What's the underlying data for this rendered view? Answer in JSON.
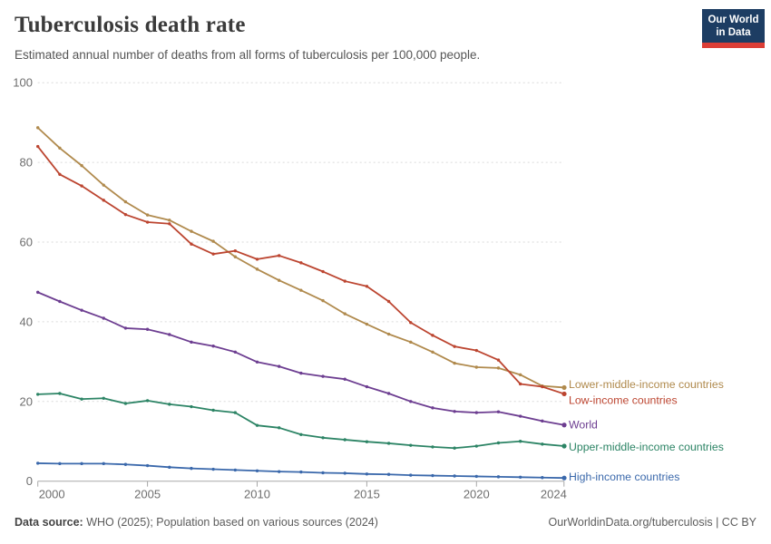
{
  "header": {
    "title": "Tuberculosis death rate",
    "subtitle": "Estimated annual number of deaths from all forms of tuberculosis per 100,000 people.",
    "logo": {
      "line1": "Our World",
      "line2": "in Data",
      "bg_color": "#1d3d63",
      "accent_color": "#dc3e36"
    }
  },
  "chart_data": {
    "type": "line",
    "title": "Tuberculosis death rate",
    "subtitle": "Estimated annual number of deaths from all forms of tuberculosis per 100,000 people.",
    "xlabel": "",
    "ylabel": "",
    "ylim": [
      0,
      100
    ],
    "yticks": [
      0,
      20,
      40,
      60,
      80,
      100
    ],
    "xticks": [
      2000,
      2005,
      2010,
      2015,
      2020,
      2024
    ],
    "grid": "horizontal-dashed",
    "legend_position": "right-of-line-ends",
    "x": [
      2000,
      2001,
      2002,
      2003,
      2004,
      2005,
      2006,
      2007,
      2008,
      2009,
      2010,
      2011,
      2012,
      2013,
      2014,
      2015,
      2016,
      2017,
      2018,
      2019,
      2020,
      2021,
      2022,
      2023,
      2024
    ],
    "series": [
      {
        "name": "Lower-middle-income countries",
        "color": "#b08a4d",
        "values": [
          88.7,
          83.6,
          79.2,
          74.3,
          70.1,
          66.8,
          65.5,
          62.7,
          60.2,
          56.3,
          53.2,
          50.4,
          47.9,
          45.3,
          42.0,
          39.4,
          36.9,
          34.9,
          32.4,
          29.6,
          28.6,
          28.4,
          26.7,
          23.9,
          23.5
        ]
      },
      {
        "name": "Low-income countries",
        "color": "#bc4530",
        "values": [
          84.0,
          77.0,
          74.1,
          70.5,
          66.9,
          65.0,
          64.6,
          59.5,
          57.0,
          57.8,
          55.7,
          56.6,
          54.8,
          52.6,
          50.2,
          48.9,
          45.1,
          39.8,
          36.6,
          33.8,
          32.8,
          30.4,
          24.4,
          23.7,
          21.9
        ]
      },
      {
        "name": "World",
        "color": "#6d3e91",
        "values": [
          47.4,
          45.1,
          42.9,
          40.9,
          38.4,
          38.1,
          36.8,
          34.9,
          33.9,
          32.4,
          29.9,
          28.8,
          27.1,
          26.3,
          25.6,
          23.7,
          22.0,
          20.0,
          18.4,
          17.5,
          17.2,
          17.4,
          16.3,
          15.1,
          14.1
        ]
      },
      {
        "name": "Upper-middle-income countries",
        "color": "#2c8465",
        "values": [
          21.8,
          22.0,
          20.6,
          20.8,
          19.5,
          20.2,
          19.3,
          18.7,
          17.8,
          17.2,
          14.0,
          13.4,
          11.7,
          10.9,
          10.4,
          9.9,
          9.5,
          9.0,
          8.6,
          8.3,
          8.8,
          9.6,
          10.0,
          9.3,
          8.8
        ]
      },
      {
        "name": "High-income countries",
        "color": "#3a68ab",
        "values": [
          4.5,
          4.4,
          4.4,
          4.4,
          4.2,
          3.9,
          3.5,
          3.2,
          3.0,
          2.8,
          2.6,
          2.4,
          2.3,
          2.1,
          2.0,
          1.8,
          1.7,
          1.5,
          1.4,
          1.3,
          1.2,
          1.1,
          1.0,
          0.9,
          0.8
        ]
      }
    ]
  },
  "footer": {
    "source_label": "Data source:",
    "source_text": " WHO (2025); Population based on various sources (2024)",
    "right_text": "OurWorldinData.org/tuberculosis | CC BY"
  }
}
